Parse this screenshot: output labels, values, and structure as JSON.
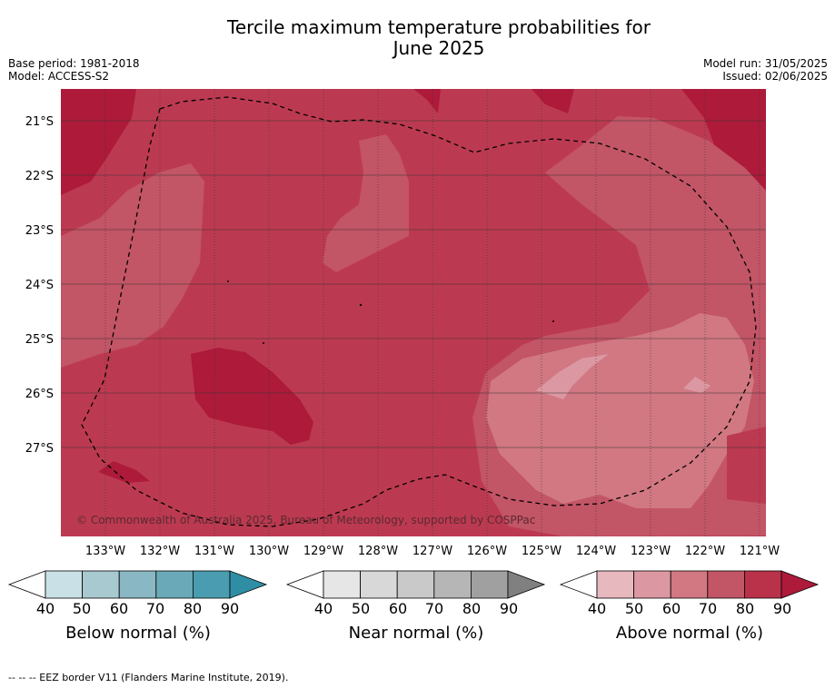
{
  "title_line1": "Tercile maximum temperature probabilities for",
  "title_line2": "June 2025",
  "base_period": "Base period: 1981-2018",
  "model": "Model: ACCESS-S2",
  "model_run": "Model run: 31/05/2025",
  "issued": "Issued: 02/06/2025",
  "copyright": "© Commonwealth of Australia 2025, Bureau of Meteorology, supported by COSPPac",
  "lat_labels": [
    "21°S",
    "22°S",
    "23°S",
    "24°S",
    "25°S",
    "26°S",
    "27°S"
  ],
  "lon_labels": [
    "133°W",
    "132°W",
    "131°W",
    "130°W",
    "129°W",
    "128°W",
    "127°W",
    "126°W",
    "125°W",
    "124°W",
    "123°W",
    "122°W",
    "121°W"
  ],
  "colorbars": [
    {
      "title": "Below normal (%)",
      "ticks": [
        "40",
        "50",
        "60",
        "70",
        "80",
        "90"
      ],
      "colors": [
        "#ffffff",
        "#c9e1e6",
        "#a7c9cf",
        "#89b7c3",
        "#6aa9b8",
        "#4a9db0",
        "#2f8ea4"
      ]
    },
    {
      "title": "Near normal (%)",
      "ticks": [
        "40",
        "50",
        "60",
        "70",
        "80",
        "90"
      ],
      "colors": [
        "#ffffff",
        "#e6e6e6",
        "#d8d8d8",
        "#c9c9c9",
        "#b6b6b6",
        "#a0a0a0",
        "#808080"
      ]
    },
    {
      "title": "Above normal (%)",
      "ticks": [
        "40",
        "50",
        "60",
        "70",
        "80",
        "90"
      ],
      "colors": [
        "#ffffff",
        "#e8b8bf",
        "#dc98a2",
        "#d17882",
        "#c25566",
        "#b9324a",
        "#ad1a3a"
      ]
    }
  ],
  "footnote": "-- -- -- EEZ border V11 (Flanders Marine Institute, 2019)."
}
